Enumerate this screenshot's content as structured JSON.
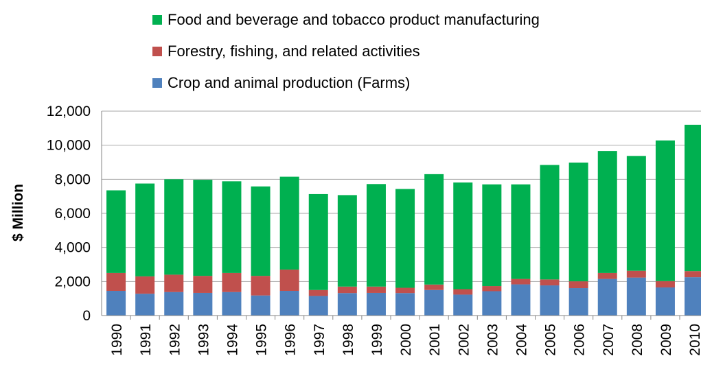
{
  "chart_data": {
    "type": "bar",
    "stacked": true,
    "title": "",
    "xlabel": "",
    "ylabel": "$ Million",
    "ylim": [
      0,
      12000
    ],
    "yticks": [
      0,
      2000,
      4000,
      6000,
      8000,
      10000,
      12000
    ],
    "ytick_labels": [
      "0",
      "2,000",
      "4,000",
      "6,000",
      "8,000",
      "10,000",
      "12,000"
    ],
    "grid": true,
    "legend_position": "top",
    "categories": [
      "1990",
      "1991",
      "1992",
      "1993",
      "1994",
      "1995",
      "1996",
      "1997",
      "1998",
      "1999",
      "2000",
      "2001",
      "2002",
      "2003",
      "2004",
      "2005",
      "2006",
      "2007",
      "2008",
      "2009",
      "2010"
    ],
    "series": [
      {
        "name": "Crop and animal production (Farms)",
        "color": "#4f81bd",
        "values": [
          1450,
          1280,
          1380,
          1330,
          1380,
          1180,
          1450,
          1150,
          1320,
          1330,
          1320,
          1500,
          1230,
          1430,
          1830,
          1770,
          1610,
          2150,
          2230,
          1650,
          2250
        ]
      },
      {
        "name": "Forestry, fishing, and related activities",
        "color": "#c0504d",
        "values": [
          1050,
          1020,
          1020,
          1000,
          1120,
          1150,
          1250,
          350,
          380,
          370,
          310,
          320,
          320,
          300,
          320,
          350,
          400,
          350,
          400,
          370,
          360
        ]
      },
      {
        "name": "Food and beverage and tobacco product manufacturing",
        "color": "#00b050",
        "values": [
          4850,
          5450,
          5600,
          5640,
          5380,
          5250,
          5450,
          5630,
          5370,
          6020,
          5800,
          6480,
          6260,
          5970,
          5550,
          6720,
          6970,
          7160,
          6740,
          8260,
          8590
        ]
      }
    ],
    "legend_order": [
      2,
      1,
      0
    ]
  }
}
